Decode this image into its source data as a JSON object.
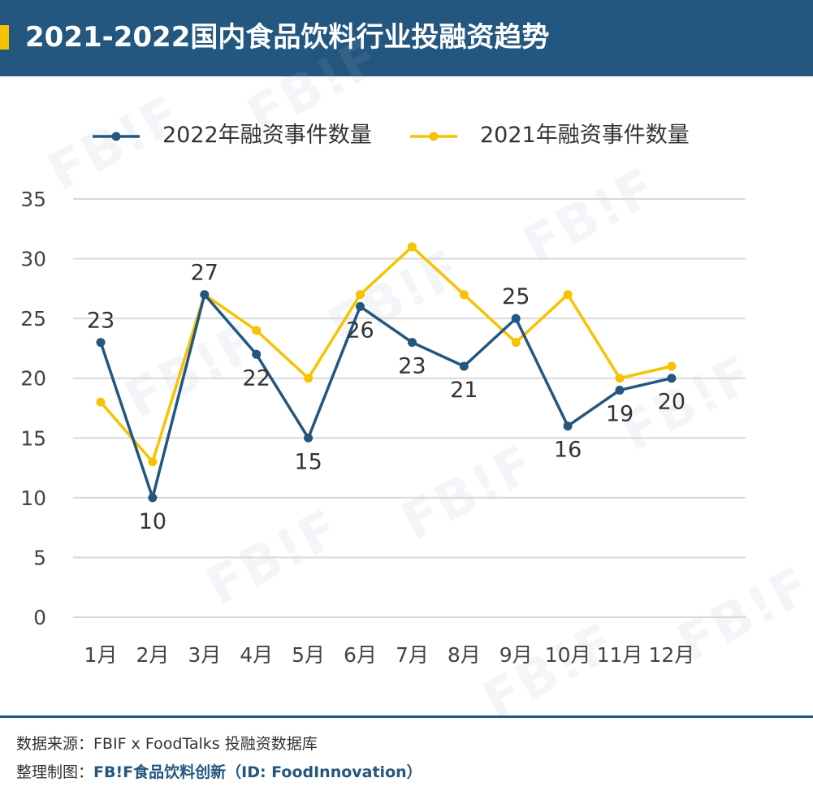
{
  "header": {
    "title": "2021-2022国内食品饮料行业投融资趋势"
  },
  "colors": {
    "header_bg": "#23577f",
    "accent": "#f7c300",
    "series_2022": "#23577f",
    "series_2021": "#f7c300"
  },
  "chart_data": {
    "type": "line",
    "categories": [
      "1月",
      "2月",
      "3月",
      "4月",
      "5月",
      "6月",
      "7月",
      "8月",
      "9月",
      "10月",
      "11月",
      "12月"
    ],
    "series": [
      {
        "name": "2022年融资事件数量",
        "color": "#23577f",
        "values": [
          23,
          10,
          27,
          22,
          15,
          26,
          23,
          21,
          25,
          16,
          19,
          20
        ],
        "labeled": true
      },
      {
        "name": "2021年融资事件数量",
        "color": "#f7c300",
        "values": [
          18,
          13,
          27,
          24,
          20,
          27,
          31,
          27,
          23,
          27,
          20,
          21
        ],
        "labeled": false
      }
    ],
    "ylim": [
      0,
      35
    ],
    "yticks": [
      "0",
      "5",
      "10",
      "15",
      "20",
      "25",
      "30",
      "35"
    ],
    "data_labels": [
      "23",
      "10",
      "27",
      "22",
      "15",
      "26",
      "23",
      "21",
      "25",
      "16",
      "19",
      "20"
    ],
    "grid": true,
    "legend_position": "top"
  },
  "footer": {
    "source": "数据来源：FBIF x FoodTalks 投融资数据库",
    "maker_prefix": "整理制图：",
    "brand": "FB!F",
    "brand_name": "食品饮料创新（ID: FoodInnovation）"
  },
  "watermark": "FB!F"
}
